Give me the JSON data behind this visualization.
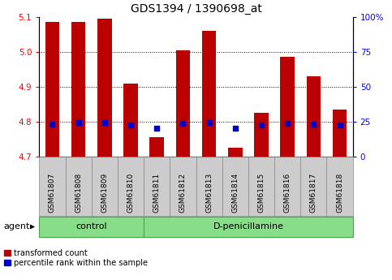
{
  "title": "GDS1394 / 1390698_at",
  "samples": [
    "GSM61807",
    "GSM61808",
    "GSM61809",
    "GSM61810",
    "GSM61811",
    "GSM61812",
    "GSM61813",
    "GSM61814",
    "GSM61815",
    "GSM61816",
    "GSM61817",
    "GSM61818"
  ],
  "transformed_count": [
    5.085,
    5.085,
    5.095,
    4.91,
    4.755,
    5.005,
    5.06,
    4.725,
    4.825,
    4.985,
    4.93,
    4.835
  ],
  "percentile_rank": [
    23.5,
    24.5,
    24.5,
    23.0,
    20.5,
    24.0,
    24.5,
    20.5,
    22.5,
    24.0,
    23.5,
    22.5
  ],
  "ylim_left": [
    4.7,
    5.1
  ],
  "ylim_right": [
    0,
    100
  ],
  "yticks_left": [
    4.7,
    4.8,
    4.9,
    5.0,
    5.1
  ],
  "yticks_right": [
    0,
    25,
    50,
    75,
    100
  ],
  "bar_color": "#bb0000",
  "dot_color": "#0000cc",
  "sample_box_color": "#cccccc",
  "group_box_color": "#88dd88",
  "agent_label": "agent",
  "control_label": "control",
  "treatment_label": "D-penicillamine",
  "legend_items": [
    "transformed count",
    "percentile rank within the sample"
  ],
  "title_fontsize": 10,
  "tick_fontsize": 7.5,
  "label_fontsize": 8,
  "bar_width": 0.55,
  "dot_size": 22,
  "ybase": 4.7,
  "n_control": 4,
  "n_samples": 12
}
